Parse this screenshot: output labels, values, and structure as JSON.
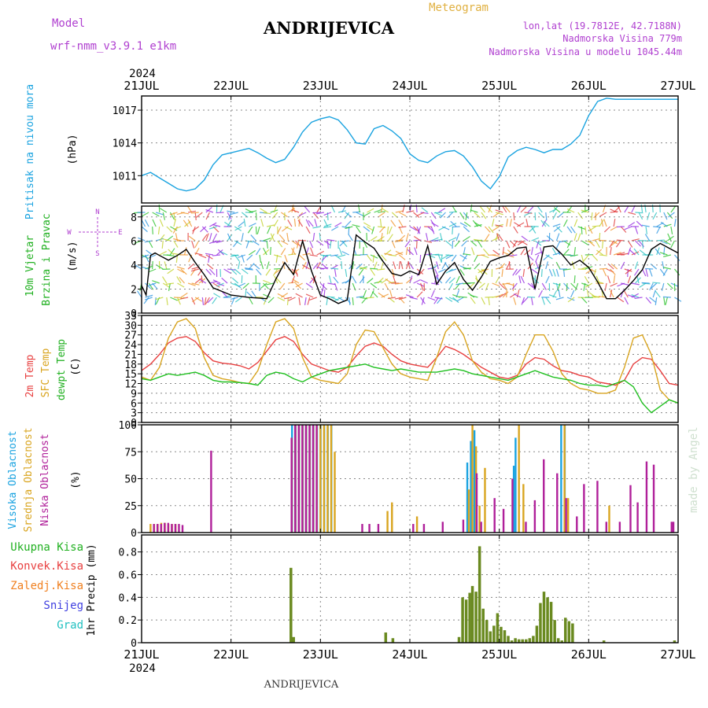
{
  "header": {
    "model_label": "Model",
    "model_name": "wrf-nmm_v3.9.1 e1km",
    "station": "ANDRIJEVICA",
    "meteogram": "Meteogram",
    "lonlat": "lon,lat (19.7812E, 42.7188N)",
    "elevation": "Nadmorska Visina 779m",
    "model_elevation": "Nadmorska Visina u modelu 1045.44m",
    "year": "2024",
    "footer": "ANDRIJEVICA",
    "watermark": "made by Angel"
  },
  "colors": {
    "pressure": "#1aa3e0",
    "temp2m": "#e84040",
    "sfc": "#d9a520",
    "dew": "#20c020",
    "high": "#1aa3e0",
    "mid": "#d9a520",
    "low": "#b0209a",
    "wind_label": "#20b020",
    "wind_speed": "#000000",
    "compass": "#b040d0",
    "total": "#20b020",
    "conv": "#e84040",
    "frozen": "#f08020",
    "snow": "#4040e0",
    "graupel": "#20c0c0",
    "precip_bar": "#6a8a20"
  },
  "chart_data": [
    {
      "id": "pressure",
      "type": "line",
      "ylabel": "Pritisak na nivou mora",
      "unit": "(hPa)",
      "ylim": [
        1008.5,
        1018.3
      ],
      "yticks": [
        1011,
        1014,
        1017
      ],
      "grid": true,
      "series": [
        {
          "x": [
            0,
            0.1,
            0.2,
            0.3,
            0.4,
            0.5,
            0.6,
            0.7,
            0.8,
            0.9,
            1.0,
            1.1,
            1.2,
            1.3,
            1.4,
            1.5,
            1.6,
            1.7,
            1.8,
            1.9,
            2.0,
            2.1,
            2.2,
            2.3,
            2.4,
            2.5,
            2.6,
            2.7,
            2.8,
            2.9,
            3.0,
            3.1,
            3.2,
            3.3,
            3.4,
            3.5,
            3.6,
            3.7,
            3.8,
            3.9,
            4.0,
            4.1,
            4.2,
            4.3,
            4.4,
            4.5,
            4.6,
            4.7,
            4.8,
            4.9,
            5.0,
            5.1,
            5.2,
            5.3,
            5.4,
            5.5,
            5.6,
            5.7,
            5.8,
            5.9,
            6.0
          ],
          "y": [
            1011,
            1011.3,
            1010.8,
            1010.3,
            1009.8,
            1009.6,
            1009.8,
            1010.6,
            1012,
            1012.9,
            1013.1,
            1013.3,
            1013.5,
            1013.1,
            1012.6,
            1012.2,
            1012.5,
            1013.6,
            1015,
            1015.9,
            1016.2,
            1016.4,
            1016.1,
            1015.2,
            1014,
            1013.9,
            1015.3,
            1015.6,
            1015.1,
            1014.4,
            1013,
            1012.4,
            1012.2,
            1012.8,
            1013.2,
            1013.3,
            1012.8,
            1011.8,
            1010.5,
            1009.8,
            1010.9,
            1012.7,
            1013.3,
            1013.6,
            1013.4,
            1013.1,
            1013.4,
            1013.4,
            1013.9,
            1014.7,
            1016.5,
            1017.8,
            1018.1,
            1018,
            1018,
            1018,
            1018,
            1018,
            1018,
            1018,
            1018
          ]
        }
      ]
    },
    {
      "id": "wind",
      "type": "line",
      "ylabel": "10m Vjetar Brzina i Pravac",
      "unit": "(m/s)",
      "compass": {
        "n": "N",
        "s": "S",
        "e": "E",
        "w": "W"
      },
      "ylim": [
        0,
        8.9
      ],
      "yticks": [
        0,
        2,
        4,
        6,
        8
      ],
      "grid": true,
      "series": [
        {
          "x": [
            0,
            0.05,
            0.1,
            0.15,
            0.2,
            0.3,
            0.4,
            0.5,
            0.6,
            0.7,
            0.8,
            0.9,
            1.0,
            1.2,
            1.4,
            1.5,
            1.6,
            1.7,
            1.8,
            1.9,
            2.0,
            2.1,
            2.2,
            2.3,
            2.4,
            2.5,
            2.6,
            2.7,
            2.8,
            2.9,
            3.0,
            3.1,
            3.2,
            3.3,
            3.4,
            3.5,
            3.6,
            3.7,
            3.8,
            3.9,
            4.0,
            4.1,
            4.2,
            4.3,
            4.4,
            4.5,
            4.6,
            4.7,
            4.8,
            4.9,
            5.0,
            5.1,
            5.2,
            5.3,
            5.4,
            5.5,
            5.6,
            5.7,
            5.8,
            5.9,
            6.0
          ],
          "y": [
            2.3,
            1.5,
            4.8,
            5.0,
            4.8,
            4.4,
            4.8,
            5.3,
            4.2,
            3.2,
            2.1,
            1.8,
            1.5,
            1.3,
            1.2,
            2.8,
            4.2,
            3.2,
            6.0,
            3.5,
            1.5,
            1.2,
            0.8,
            1.1,
            6.5,
            5.9,
            5.4,
            4.3,
            3.3,
            3.1,
            3.5,
            3.2,
            5.6,
            2.4,
            3.5,
            4.2,
            2.8,
            1.9,
            3.0,
            4.3,
            4.6,
            4.8,
            5.4,
            5.5,
            2.0,
            5.5,
            5.6,
            4.9,
            4.0,
            4.4,
            3.8,
            2.6,
            1.2,
            1.2,
            1.9,
            2.7,
            3.6,
            5.3,
            5.8,
            5.4,
            5.0
          ]
        }
      ]
    },
    {
      "id": "temperature",
      "type": "line",
      "ylabel_lines": [
        "2m Temp",
        "SFC Temp",
        "dewpt Temp"
      ],
      "unit": "(C)",
      "ylim": [
        0,
        33
      ],
      "yticks": [
        0,
        3,
        6,
        9,
        12,
        15,
        18,
        21,
        24,
        27,
        30,
        33
      ],
      "grid": true,
      "series": [
        {
          "name": "2m Temp",
          "x": [
            0,
            0.1,
            0.2,
            0.3,
            0.4,
            0.5,
            0.6,
            0.7,
            0.8,
            0.9,
            1.0,
            1.1,
            1.2,
            1.3,
            1.4,
            1.5,
            1.6,
            1.7,
            1.8,
            1.9,
            2.0,
            2.1,
            2.2,
            2.3,
            2.4,
            2.5,
            2.6,
            2.7,
            2.8,
            2.9,
            3.0,
            3.1,
            3.2,
            3.3,
            3.4,
            3.5,
            3.6,
            3.7,
            3.8,
            3.9,
            4.0,
            4.1,
            4.2,
            4.3,
            4.4,
            4.5,
            4.6,
            4.7,
            4.8,
            4.9,
            5.0,
            5.1,
            5.2,
            5.3,
            5.4,
            5.5,
            5.6,
            5.7,
            5.8,
            5.9,
            6.0
          ],
          "y": [
            16,
            18,
            21,
            24.5,
            26,
            26.5,
            25,
            21.5,
            19,
            18.3,
            18,
            17.5,
            16.5,
            18.5,
            22,
            25.5,
            26.5,
            25,
            21,
            18,
            17,
            16,
            15.5,
            17,
            20.5,
            23.5,
            24.5,
            23.5,
            21,
            19,
            18,
            17.5,
            17,
            20,
            23.5,
            22.5,
            21,
            19,
            17,
            15.5,
            14,
            13.5,
            14.5,
            18,
            20,
            19.5,
            17.5,
            16,
            15.5,
            14.5,
            14,
            12.5,
            12,
            11.5,
            13,
            18,
            20,
            19.5,
            16,
            12,
            11.5
          ]
        },
        {
          "name": "SFC Temp",
          "x": [
            0,
            0.1,
            0.2,
            0.3,
            0.4,
            0.5,
            0.6,
            0.7,
            0.8,
            0.9,
            1.0,
            1.1,
            1.2,
            1.3,
            1.4,
            1.5,
            1.6,
            1.7,
            1.8,
            1.9,
            2.0,
            2.1,
            2.2,
            2.3,
            2.4,
            2.5,
            2.6,
            2.7,
            2.8,
            2.9,
            3.0,
            3.1,
            3.2,
            3.3,
            3.4,
            3.5,
            3.6,
            3.7,
            3.8,
            3.9,
            4.0,
            4.1,
            4.2,
            4.3,
            4.4,
            4.5,
            4.6,
            4.7,
            4.8,
            4.9,
            5.0,
            5.1,
            5.2,
            5.3,
            5.4,
            5.5,
            5.6,
            5.7,
            5.8,
            5.9,
            6.0
          ],
          "y": [
            14,
            13,
            17,
            26,
            31,
            32,
            29,
            20,
            14.5,
            13.5,
            13,
            12.3,
            12,
            16,
            24,
            31,
            32,
            29,
            20,
            14,
            13,
            12.5,
            12,
            15,
            24,
            28.5,
            28,
            23,
            18,
            15,
            14,
            13.5,
            13,
            20,
            28,
            31,
            27,
            19,
            15.5,
            13.5,
            13,
            12,
            14,
            21,
            27,
            27,
            22,
            15,
            12,
            10.5,
            10,
            9,
            9,
            10,
            17,
            26,
            27,
            21,
            10,
            7,
            6
          ]
        },
        {
          "name": "dewpt Temp",
          "x": [
            0,
            0.1,
            0.2,
            0.3,
            0.4,
            0.5,
            0.6,
            0.7,
            0.8,
            0.9,
            1.0,
            1.1,
            1.2,
            1.3,
            1.4,
            1.5,
            1.6,
            1.7,
            1.8,
            1.9,
            2.0,
            2.1,
            2.2,
            2.3,
            2.4,
            2.5,
            2.6,
            2.7,
            2.8,
            2.9,
            3.0,
            3.1,
            3.2,
            3.3,
            3.4,
            3.5,
            3.6,
            3.7,
            3.8,
            3.9,
            4.0,
            4.1,
            4.2,
            4.3,
            4.4,
            4.5,
            4.6,
            4.7,
            4.8,
            4.9,
            5.0,
            5.1,
            5.2,
            5.3,
            5.4,
            5.5,
            5.6,
            5.7,
            5.8,
            5.9,
            6.0
          ],
          "y": [
            13.5,
            13,
            14,
            15,
            14.5,
            15,
            15.5,
            14.5,
            13,
            12.5,
            12.5,
            12.3,
            12,
            11.5,
            14.5,
            15.5,
            15,
            13.5,
            12.5,
            14,
            15,
            16,
            16.5,
            17,
            17.5,
            18,
            17,
            16.5,
            16,
            16.5,
            16,
            15.5,
            15.5,
            15.5,
            16,
            16.5,
            16,
            15,
            14.5,
            14,
            13.5,
            13,
            14,
            15,
            16,
            15,
            14,
            13.5,
            13,
            12,
            11.5,
            11.5,
            11,
            12,
            13,
            11,
            6,
            3,
            5,
            7,
            6
          ]
        }
      ]
    },
    {
      "id": "clouds",
      "type": "bar",
      "ylabel_lines": [
        "Visoka Oblacnost",
        "Srednja Oblacnost",
        "Niska Oblacnost"
      ],
      "unit": "(%)",
      "ylim": [
        0,
        100
      ],
      "yticks": [
        0,
        25,
        50,
        75,
        100
      ],
      "grid": true,
      "series": [
        {
          "name": "Visoka Oblacnost",
          "x": [
            1.7,
            1.74,
            1.78,
            1.82,
            1.86,
            1.9,
            1.94,
            1.98,
            2.02,
            2.06,
            2.1,
            2.14,
            3.66,
            3.7,
            3.74,
            4.18,
            4.2,
            4.71,
            4.75
          ],
          "y": [
            100,
            100,
            100,
            100,
            100,
            100,
            100,
            100,
            100,
            100,
            100,
            100,
            65,
            85,
            95,
            62,
            88,
            100,
            100
          ]
        },
        {
          "name": "Srednja Oblacnost",
          "x": [
            0.1,
            0.14,
            0.18,
            0.22,
            0.26,
            0.3,
            0.34,
            0.38,
            1.68,
            1.72,
            1.76,
            1.8,
            1.84,
            1.88,
            1.92,
            1.96,
            2.0,
            2.04,
            2.08,
            2.12,
            2.16,
            2.75,
            2.8,
            3.08,
            3.66,
            3.7,
            3.74,
            3.78,
            3.84,
            4.22,
            4.27,
            4.73,
            4.77,
            5.23
          ],
          "y": [
            8,
            8,
            8,
            9,
            9,
            8,
            8,
            8,
            88,
            100,
            100,
            100,
            100,
            100,
            100,
            100,
            100,
            100,
            100,
            100,
            75,
            20,
            28,
            15,
            40,
            100,
            80,
            25,
            60,
            100,
            45,
            100,
            32,
            25
          ]
        },
        {
          "name": "Niska Oblacnost",
          "x": [
            0.12,
            0.16,
            0.2,
            0.24,
            0.28,
            0.32,
            0.36,
            0.4,
            0.44,
            0.76,
            1.66,
            1.7,
            1.74,
            1.78,
            1.82,
            1.86,
            1.9,
            1.94,
            2.45,
            2.53,
            2.63,
            3.02,
            3.14,
            3.35,
            3.58,
            3.73,
            3.78,
            3.93,
            4.03,
            4.13,
            4.28,
            4.38,
            4.48,
            4.63,
            4.73,
            4.85,
            4.93,
            5.08,
            5.18,
            5.33,
            5.45,
            5.53,
            5.63,
            5.71,
            5.91,
            5.93
          ],
          "y": [
            8,
            8,
            8,
            9,
            9,
            8,
            8,
            8,
            7,
            76,
            88,
            100,
            100,
            100,
            100,
            100,
            100,
            100,
            8,
            8,
            8,
            8,
            8,
            10,
            12,
            55,
            10,
            32,
            22,
            50,
            10,
            30,
            68,
            55,
            32,
            15,
            45,
            48,
            10,
            10,
            44,
            28,
            66,
            63,
            10,
            10
          ]
        }
      ]
    },
    {
      "id": "precip",
      "type": "bar",
      "ylabel": "1hr Precip (mm)",
      "legend": [
        "Ukupna Kisa",
        "Konvek.Kisa",
        "Zaledj.Kisa",
        "Snijeg",
        "Grad"
      ],
      "ylim": [
        0,
        0.95
      ],
      "yticks": [
        0,
        0.2,
        0.4,
        0.6,
        0.8
      ],
      "grid": true,
      "series": [
        {
          "name": "Ukupna Kisa",
          "x": [
            1.67,
            1.7,
            2.73,
            2.81,
            3.55,
            3.59,
            3.63,
            3.67,
            3.7,
            3.74,
            3.78,
            3.82,
            3.86,
            3.9,
            3.94,
            3.98,
            4.02,
            4.06,
            4.1,
            4.14,
            4.18,
            4.22,
            4.26,
            4.3,
            4.34,
            4.38,
            4.42,
            4.46,
            4.5,
            4.54,
            4.58,
            4.62,
            4.66,
            4.7,
            4.74,
            4.78,
            4.82,
            5.17,
            5.96
          ],
          "y": [
            0.66,
            0.05,
            0.09,
            0.04,
            0.05,
            0.4,
            0.38,
            0.44,
            0.5,
            0.45,
            0.85,
            0.3,
            0.2,
            0.1,
            0.15,
            0.26,
            0.14,
            0.11,
            0.06,
            0.02,
            0.04,
            0.03,
            0.03,
            0.03,
            0.04,
            0.06,
            0.15,
            0.35,
            0.45,
            0.4,
            0.36,
            0.2,
            0.04,
            0.02,
            0.22,
            0.19,
            0.17,
            0.02,
            0.02
          ]
        }
      ]
    }
  ],
  "x_axis": {
    "ticks": [
      "21JUL",
      "22JUL",
      "23JUL",
      "24JUL",
      "25JUL",
      "26JUL",
      "27JUL"
    ]
  }
}
